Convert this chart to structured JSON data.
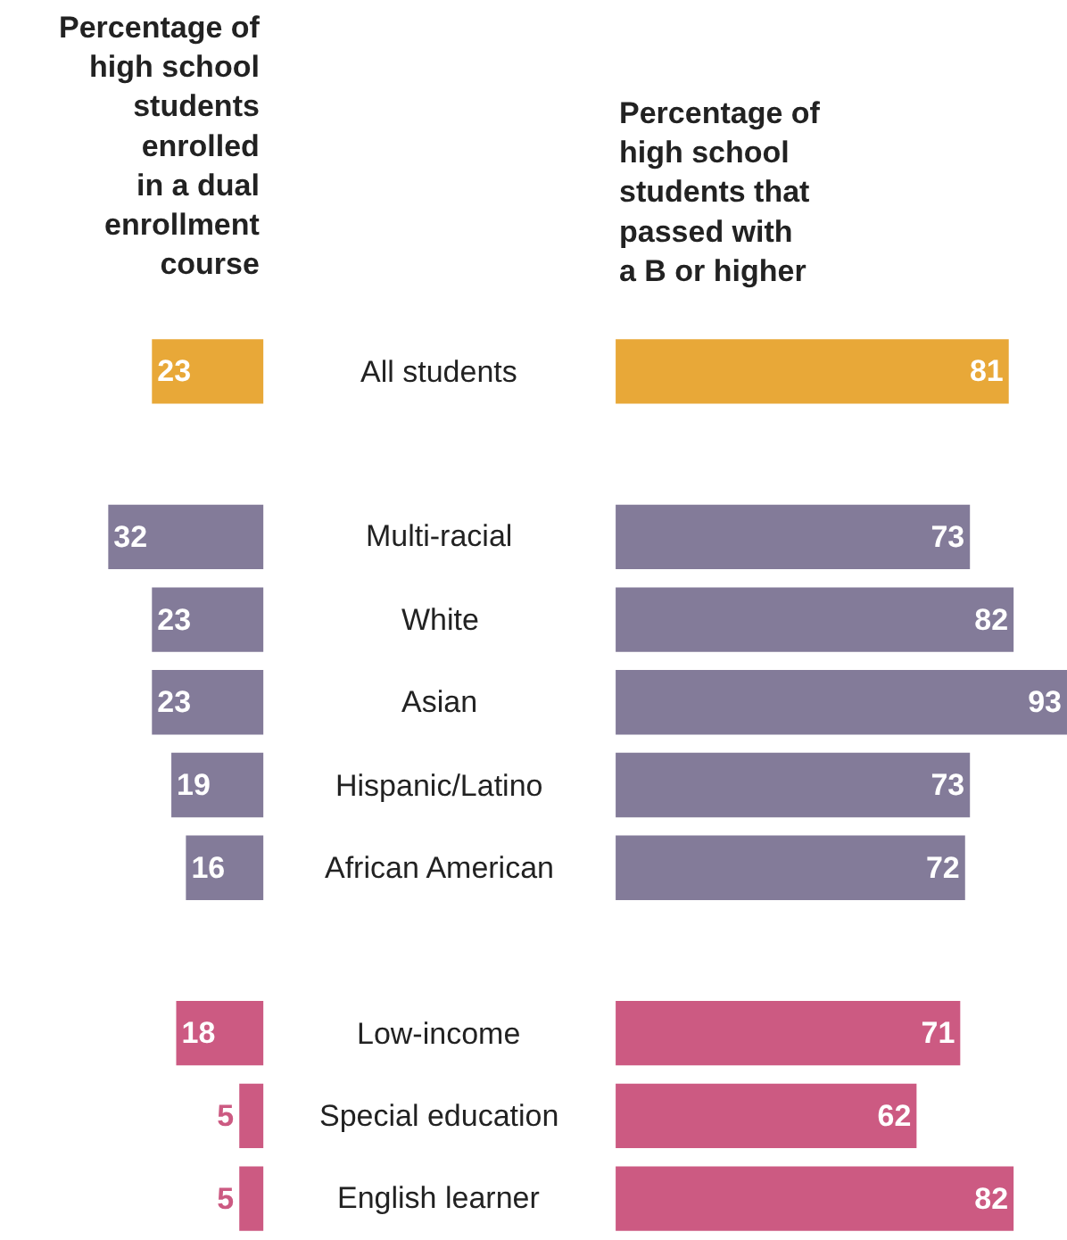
{
  "chart_data": [
    {
      "type": "bar",
      "orientation": "horizontal",
      "title": "Percentage of\nhigh school\nstudents\nenrolled\nin a dual\nenrollment\ncourse",
      "tick_labels": false,
      "data_labels": true,
      "categories": [
        "All students",
        null,
        "Multi-racial",
        "White",
        "Asian",
        "Hispanic/Latino",
        "African American",
        null,
        "Low-income",
        "Special education",
        "English learner"
      ],
      "values": [
        23,
        null,
        32,
        23,
        23,
        19,
        16,
        null,
        18,
        5,
        5
      ],
      "colors": [
        "#e8a838",
        null,
        "#837b99",
        "#837b99",
        "#837b99",
        "#837b99",
        "#837b99",
        null,
        "#cc5a82",
        "#cc5a82",
        "#cc5a82"
      ]
    },
    {
      "type": "bar",
      "orientation": "horizontal",
      "title": "Percentage of\nhigh school\nstudents that\npassed with\na B or higher",
      "tick_labels": false,
      "data_labels": true,
      "categories": [
        "All students",
        null,
        "Multi-racial",
        "White",
        "Asian",
        "Hispanic/Latino",
        "African American",
        null,
        "Low-income",
        "Special education",
        "English learner"
      ],
      "values": [
        81,
        null,
        73,
        82,
        93,
        73,
        72,
        null,
        71,
        62,
        82
      ],
      "colors": [
        "#e8a838",
        null,
        "#837b99",
        "#837b99",
        "#837b99",
        "#837b99",
        "#837b99",
        null,
        "#cc5a82",
        "#cc5a82",
        "#cc5a82"
      ]
    }
  ]
}
